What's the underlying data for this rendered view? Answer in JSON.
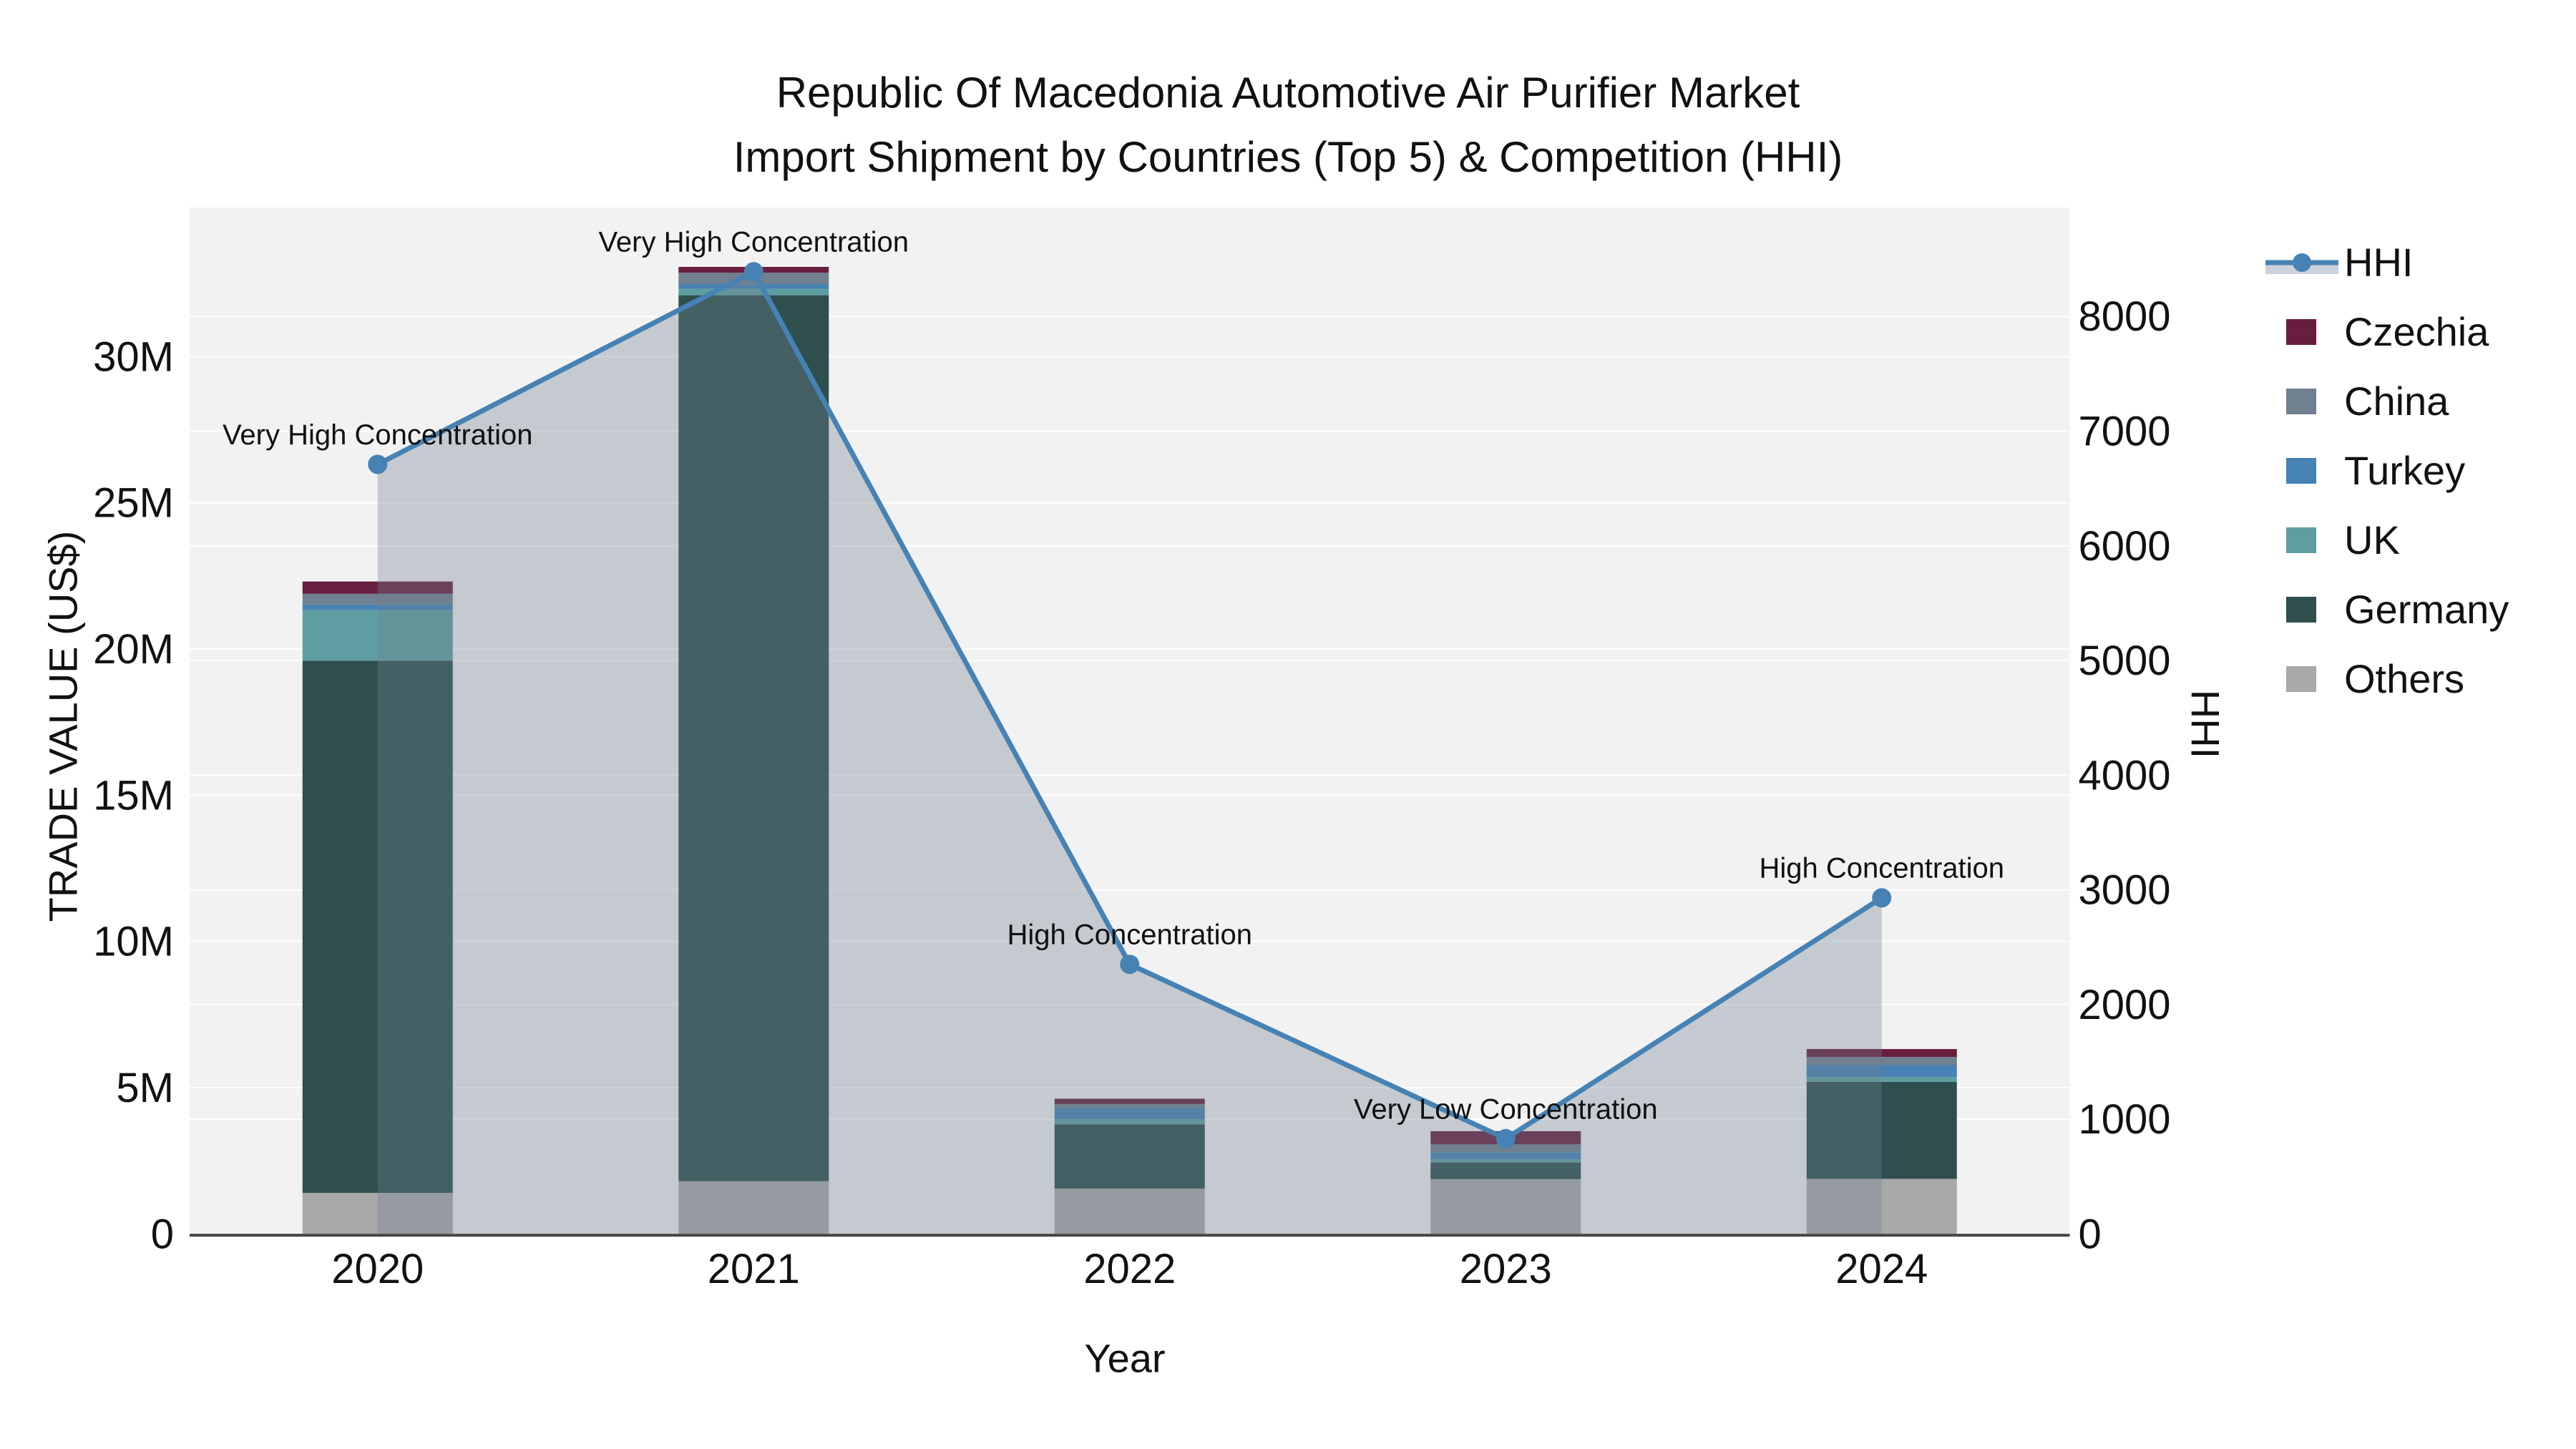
{
  "title": {
    "line1": "Republic Of Macedonia Automotive Air Purifier Market",
    "line2": "Import Shipment by Countries (Top 5) & Competition (HHI)"
  },
  "axes": {
    "x_title": "Year",
    "y_left_title": "TRADE VALUE (US$)",
    "y_right_title": "HHI"
  },
  "legend": {
    "items": [
      {
        "label": "HHI",
        "type": "line",
        "color": "#4682B4",
        "band_color": "#ccd2db"
      },
      {
        "label": "Czechia",
        "type": "swatch",
        "color": "#681E3E"
      },
      {
        "label": "China",
        "type": "swatch",
        "color": "#708090"
      },
      {
        "label": "Turkey",
        "type": "swatch",
        "color": "#4682B4"
      },
      {
        "label": "UK",
        "type": "swatch",
        "color": "#5F9EA0"
      },
      {
        "label": "Germany",
        "type": "swatch",
        "color": "#2F4F4F"
      },
      {
        "label": "Others",
        "type": "swatch",
        "color": "#A9A9A9"
      }
    ]
  },
  "chart_data": {
    "type": "combo: stacked-bar (left axis) + line with area fill (right axis)",
    "title": "Republic Of Macedonia Automotive Air Purifier Market — Import Shipment by Countries (Top 5) & Competition (HHI)",
    "xlabel": "Year",
    "ylabel": "TRADE VALUE (US$)",
    "y2label": "HHI",
    "categories": [
      "2020",
      "2021",
      "2022",
      "2023",
      "2024"
    ],
    "bar_value_unit": "million US$",
    "stack_order_bottom_to_top": [
      "Others",
      "Germany",
      "UK",
      "Turkey",
      "China",
      "Czechia"
    ],
    "series": [
      {
        "name": "Czechia",
        "color": "#681E3E",
        "values": [
          0.42,
          0.2,
          0.18,
          0.45,
          0.27
        ]
      },
      {
        "name": "China",
        "color": "#708090",
        "values": [
          0.37,
          0.39,
          0.15,
          0.27,
          0.28
        ]
      },
      {
        "name": "Turkey",
        "color": "#4682B4",
        "values": [
          0.19,
          0.16,
          0.37,
          0.24,
          0.41
        ]
      },
      {
        "name": "UK",
        "color": "#5F9EA0",
        "values": [
          1.73,
          0.22,
          0.18,
          0.11,
          0.16
        ]
      },
      {
        "name": "Germany",
        "color": "#2F4F4F",
        "values": [
          18.2,
          30.3,
          2.19,
          0.57,
          3.32
        ]
      },
      {
        "name": "Others",
        "color": "#A9A9A9",
        "values": [
          1.4,
          1.8,
          1.55,
          1.87,
          1.88
        ]
      }
    ],
    "bar_totals_musd": [
      22.31,
      33.07,
      4.62,
      3.51,
      6.32
    ],
    "line_series": {
      "name": "HHI",
      "color": "#4682B4",
      "area_fill": "rgba(112,128,144,0.35)",
      "values": [
        6710,
        8390,
        2350,
        830,
        2930
      ]
    },
    "annotations": [
      {
        "category": "2020",
        "text": "Very High Concentration"
      },
      {
        "category": "2021",
        "text": "Very High Concentration"
      },
      {
        "category": "2022",
        "text": "High Concentration"
      },
      {
        "category": "2023",
        "text": "Very Low Concentration"
      },
      {
        "category": "2024",
        "text": "High Concentration"
      }
    ],
    "y_left_ticks": [
      {
        "v": 0,
        "label": "0"
      },
      {
        "v": 5,
        "label": "5M"
      },
      {
        "v": 10,
        "label": "10M"
      },
      {
        "v": 15,
        "label": "15M"
      },
      {
        "v": 20,
        "label": "20M"
      },
      {
        "v": 25,
        "label": "25M"
      },
      {
        "v": 30,
        "label": "30M"
      }
    ],
    "y_right_ticks": [
      {
        "v": 0,
        "label": "0"
      },
      {
        "v": 1000,
        "label": "1000"
      },
      {
        "v": 2000,
        "label": "2000"
      },
      {
        "v": 3000,
        "label": "3000"
      },
      {
        "v": 4000,
        "label": "4000"
      },
      {
        "v": 5000,
        "label": "5000"
      },
      {
        "v": 6000,
        "label": "6000"
      },
      {
        "v": 7000,
        "label": "7000"
      },
      {
        "v": 8000,
        "label": "8000"
      }
    ],
    "ylim_musd": [
      0,
      35.1
    ],
    "y2lim": [
      0,
      8950
    ],
    "grid": true,
    "plot_bg": "#F2F2F2",
    "grid_color": "#FFFFFF",
    "axis_line_color": "#444444",
    "legend_position": "right"
  }
}
